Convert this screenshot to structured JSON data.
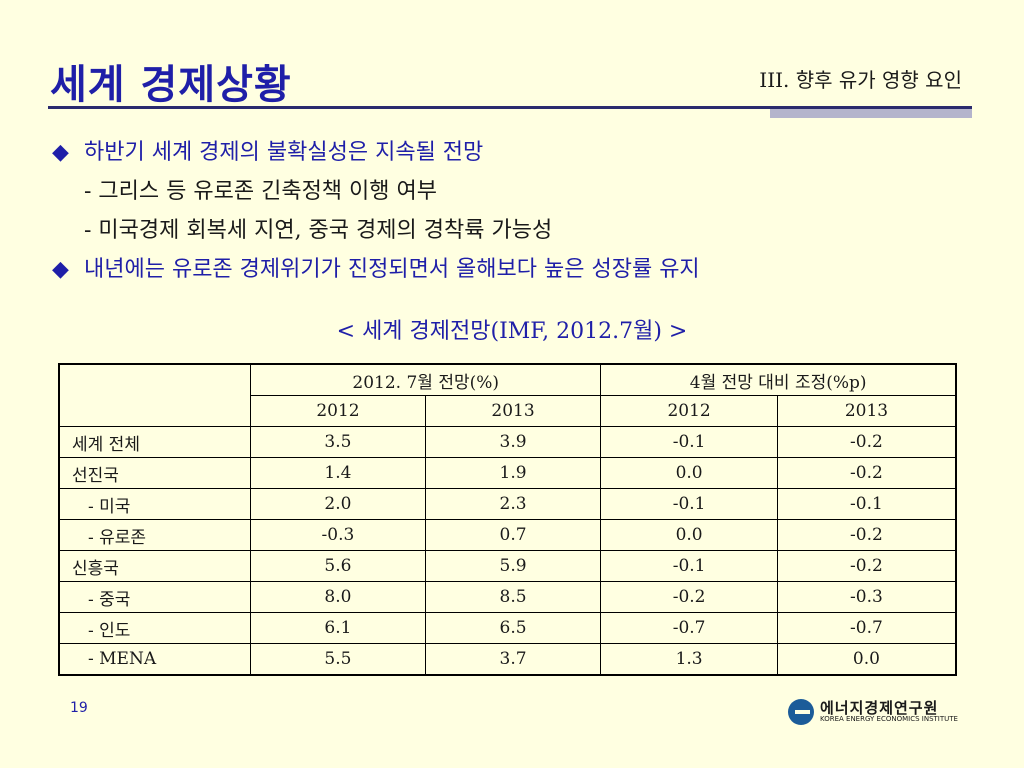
{
  "slide": {
    "title": "세계 경제상황",
    "section": "III. 향후 유가 영향 요인",
    "page_number": "19"
  },
  "bullets": {
    "b1": "하반기 세계 경제의 불확실성은 지속될 전망",
    "b1_sub1": "- 그리스 등 유로존 긴축정책 이행 여부",
    "b1_sub2": "- 미국경제 회복세 지연, 중국 경제의 경착륙 가능성",
    "b2": "내년에는 유로존 경제위기가 진정되면서 올해보다 높은 성장률 유지",
    "diamond": "◆"
  },
  "table": {
    "caption": "< 세계 경제전망(IMF, 2012.7월) >",
    "group1": "2012. 7월  전망(%)",
    "group2": "4월  전망 대비  조정(%p)",
    "years": [
      "2012",
      "2013",
      "2012",
      "2013"
    ],
    "rows": [
      {
        "label": "세계 전체",
        "v": [
          "3.5",
          "3.9",
          "-0.1",
          "-0.2"
        ]
      },
      {
        "label": "선진국",
        "v": [
          "1.4",
          "1.9",
          "0.0",
          "-0.2"
        ]
      },
      {
        "label": "- 미국",
        "v": [
          "2.0",
          "2.3",
          "-0.1",
          "-0.1"
        ]
      },
      {
        "label": "- 유로존",
        "v": [
          "-0.3",
          "0.7",
          "0.0",
          "-0.2"
        ]
      },
      {
        "label": "신흥국",
        "v": [
          "5.6",
          "5.9",
          "-0.1",
          "-0.2"
        ]
      },
      {
        "label": "- 중국",
        "v": [
          "8.0",
          "8.5",
          "-0.2",
          "-0.3"
        ]
      },
      {
        "label": "- 인도",
        "v": [
          "6.1",
          "6.5",
          "-0.7",
          "-0.7"
        ]
      },
      {
        "label": "- MENA",
        "v": [
          "5.5",
          "3.7",
          "1.3",
          "0.0"
        ]
      }
    ]
  },
  "logo": {
    "korean": "에너지경제연구원",
    "english": "KOREA ENERGY ECONOMICS INSTITUTE"
  },
  "colors": {
    "background": "#ffffe1",
    "title_blue": "#1f1fa8",
    "rule": "#2a2a6e"
  }
}
